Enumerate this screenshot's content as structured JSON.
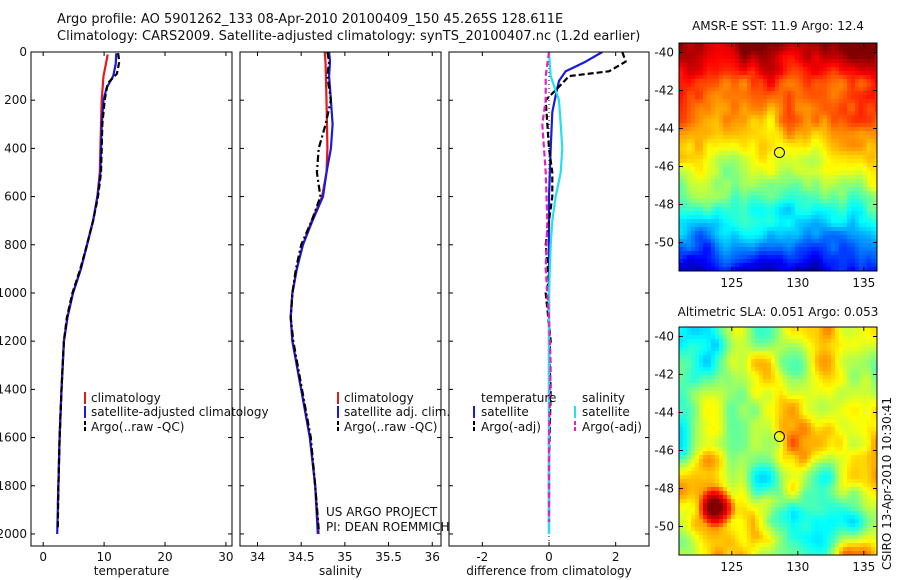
{
  "header": {
    "line1": "Argo profile: AO 5901262_133 08-Apr-2010 20100409_150 45.265S 128.611E",
    "line2": "Climatology: CARS2009. Satellite-adjusted climatology: synTS_20100407.nc (1.2d earlier)"
  },
  "timestamp": "CSIRO 13-Apr-2010 10:30:41",
  "credit": {
    "line1": "US ARGO PROJECT",
    "line2": "PI: DEAN ROEMMICH"
  },
  "colors": {
    "clim": "#e31a1c",
    "sat": "#1a1adb",
    "argo": "#000000",
    "sal_sat": "#22e0ee",
    "sal_argo": "#e020c8",
    "marker": "#000000"
  },
  "chart_data": [
    {
      "type": "line",
      "id": "temperature",
      "xlabel": "temperature",
      "ylabel": "",
      "xlim": [
        -2,
        31
      ],
      "ylim": [
        2050,
        0
      ],
      "xticks": [
        0,
        10,
        20,
        30
      ],
      "yticks": [
        0,
        200,
        400,
        600,
        800,
        1000,
        1200,
        1400,
        1600,
        1800,
        2000
      ],
      "legend": {
        "position": "bottom-right",
        "entries": [
          "climatology",
          "satellite-adjusted climatology",
          "Argo(..raw -QC)"
        ]
      },
      "series": [
        {
          "name": "climatology",
          "color": "#e31a1c",
          "dash": "solid",
          "x": [
            10.6,
            10.3,
            9.9,
            9.6,
            9.5,
            9.3,
            8.9,
            8.2,
            7.2,
            6.2,
            4.9,
            4.0,
            3.4,
            3.0,
            2.7,
            2.5,
            2.4
          ],
          "y": [
            10,
            50,
            100,
            200,
            300,
            500,
            600,
            700,
            800,
            900,
            1000,
            1100,
            1200,
            1400,
            1600,
            1800,
            1880
          ]
        },
        {
          "name": "satellite-adjusted climatology",
          "color": "#1a1adb",
          "dash": "solid",
          "x": [
            12.0,
            11.9,
            11.5,
            10.4,
            9.9,
            9.6,
            9.4,
            8.9,
            8.2,
            7.2,
            6.2,
            4.9,
            4.0,
            3.4,
            3.0,
            2.7,
            2.5,
            2.4,
            2.3
          ],
          "y": [
            5,
            50,
            100,
            150,
            200,
            300,
            500,
            600,
            700,
            800,
            900,
            1000,
            1100,
            1200,
            1400,
            1600,
            1800,
            1900,
            2000
          ]
        },
        {
          "name": "Argo(..raw -QC)",
          "color": "#000000",
          "dash": "dash",
          "x": [
            12.3,
            12.5,
            12.1,
            10.6,
            10.1,
            9.7,
            9.6,
            9.5,
            9.0,
            8.2,
            7.2,
            6.1,
            4.8,
            3.9,
            3.4,
            3.0,
            2.7,
            2.5,
            2.4
          ],
          "y": [
            5,
            40,
            90,
            130,
            200,
            300,
            400,
            500,
            600,
            700,
            800,
            900,
            1000,
            1100,
            1200,
            1400,
            1600,
            1800,
            1980
          ]
        }
      ]
    },
    {
      "type": "line",
      "id": "salinity",
      "xlabel": "salinity",
      "ylabel": "",
      "xlim": [
        33.8,
        36.1
      ],
      "ylim": [
        2050,
        0
      ],
      "xticks": [
        34,
        34.5,
        35,
        35.5,
        36
      ],
      "xtick_labels": [
        "34",
        "34.5",
        "35",
        "35.5",
        "36"
      ],
      "legend": {
        "position": "bottom-right",
        "entries": [
          "climatology",
          "satellite adj. clim.",
          "Argo(..raw -QC)"
        ]
      },
      "series": [
        {
          "name": "climatology",
          "color": "#e31a1c",
          "dash": "solid",
          "x": [
            34.77,
            34.78,
            34.79,
            34.8,
            34.79,
            34.74,
            34.62,
            34.52,
            34.45,
            34.4,
            34.38,
            34.4,
            34.5,
            34.6,
            34.66,
            34.7
          ],
          "y": [
            0,
            50,
            200,
            400,
            500,
            600,
            700,
            800,
            900,
            1000,
            1100,
            1200,
            1400,
            1600,
            1800,
            2000
          ]
        },
        {
          "name": "satellite adj. clim.",
          "color": "#1a1adb",
          "dash": "solid",
          "x": [
            34.82,
            34.83,
            34.82,
            34.84,
            34.86,
            34.84,
            34.79,
            34.75,
            34.63,
            34.52,
            34.45,
            34.4,
            34.38,
            34.4,
            34.5,
            34.6,
            34.66,
            34.69
          ],
          "y": [
            0,
            40,
            100,
            200,
            300,
            400,
            500,
            600,
            700,
            800,
            900,
            1000,
            1100,
            1200,
            1400,
            1600,
            1800,
            2000
          ]
        },
        {
          "name": "Argo(..raw -QC)",
          "color": "#000000",
          "dash": "dashdot",
          "x": [
            34.8,
            34.82,
            34.8,
            34.84,
            34.78,
            34.7,
            34.68,
            34.72,
            34.62,
            34.5,
            34.44,
            34.4,
            34.38,
            34.41,
            34.51,
            34.61,
            34.66,
            34.7
          ],
          "y": [
            0,
            40,
            100,
            200,
            300,
            400,
            500,
            600,
            700,
            800,
            900,
            1000,
            1100,
            1200,
            1400,
            1600,
            1800,
            1980
          ]
        }
      ]
    },
    {
      "type": "line",
      "id": "difference",
      "xlabel": "difference from climatology",
      "ylabel": "",
      "xlim": [
        -3,
        3
      ],
      "ylim": [
        2050,
        0
      ],
      "xticks": [
        -2,
        0,
        2
      ],
      "legend": {
        "position": "bottom",
        "entries": [
          "temperature",
          "satellite",
          "Argo(-adj)",
          "salinity",
          "satellite",
          "Argo(-adj)"
        ]
      },
      "series": [
        {
          "name": "temperature satellite",
          "color": "#1a1adb",
          "dash": "solid",
          "x": [
            1.6,
            1.1,
            0.8,
            0.5,
            0.3,
            0.2,
            0.1,
            0.05,
            0,
            0,
            0,
            0,
            0
          ],
          "y": [
            0,
            40,
            60,
            80,
            120,
            180,
            250,
            400,
            600,
            900,
            1200,
            1600,
            2000
          ]
        },
        {
          "name": "temperature Argo(-adj)",
          "color": "#000000",
          "dash": "dash",
          "x": [
            2.2,
            2.3,
            1.8,
            0.6,
            0.4,
            -0.1,
            0.0,
            0.1,
            0.1,
            -0.1,
            0.0,
            -0.1,
            0.05,
            0.0,
            0.05,
            0.0,
            0.0
          ],
          "y": [
            0,
            40,
            80,
            100,
            130,
            200,
            400,
            500,
            600,
            800,
            950,
            1000,
            1200,
            1250,
            1400,
            1700,
            1950
          ]
        },
        {
          "name": "salinity satellite",
          "color": "#22e0ee",
          "dash": "solid",
          "x": [
            0,
            0.05,
            0.3,
            0.35,
            0.4,
            0.35,
            0.2,
            0.1,
            0.05,
            0,
            0,
            0
          ],
          "y": [
            0,
            100,
            200,
            300,
            400,
            500,
            600,
            700,
            800,
            1000,
            1500,
            2000
          ]
        },
        {
          "name": "salinity Argo(-adj)",
          "color": "#e020c8",
          "dash": "dash",
          "x": [
            0,
            -0.1,
            -0.1,
            -0.2,
            -0.1,
            -0.05,
            -0.1,
            0,
            0.05,
            0,
            0
          ],
          "y": [
            0,
            100,
            200,
            300,
            500,
            700,
            900,
            1100,
            1300,
            1600,
            1950
          ]
        }
      ]
    },
    {
      "type": "heatmap",
      "id": "sst_map",
      "title": "AMSR-E SST: 11.9 Argo: 12.4",
      "xlim": [
        121,
        136
      ],
      "ylim": [
        -51.5,
        -39.5
      ],
      "xticks": [
        125,
        130,
        135
      ],
      "yticks": [
        -40,
        -42,
        -44,
        -46,
        -48,
        -50
      ],
      "marker": {
        "lon": 128.611,
        "lat": -45.265
      }
    },
    {
      "type": "heatmap",
      "id": "sla_map",
      "title": "Altimetric SLA: 0.051 Argo: 0.053",
      "xlim": [
        121,
        136
      ],
      "ylim": [
        -51.5,
        -39.5
      ],
      "xticks": [
        125,
        130,
        135
      ],
      "yticks": [
        -40,
        -42,
        -44,
        -46,
        -48,
        -50
      ],
      "marker": {
        "lon": 128.611,
        "lat": -45.265
      }
    }
  ]
}
